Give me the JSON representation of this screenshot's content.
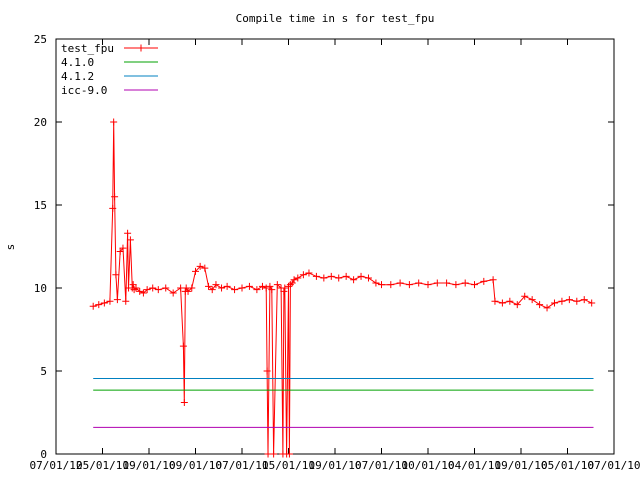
{
  "chart_data": {
    "type": "line",
    "title": "Compile time in s for test_fpu",
    "ylabel": "s",
    "xlabel": "",
    "ylim": [
      0,
      25
    ],
    "yticks": [
      0,
      5,
      10,
      15,
      20,
      25
    ],
    "grid": false,
    "legend_position": "top-left",
    "xlim": [
      0,
      30
    ],
    "xticks": [
      {
        "x": 0,
        "label": "07/01/12"
      },
      {
        "x": 2.5,
        "label": "05/01/11"
      },
      {
        "x": 5,
        "label": "09/01/10"
      },
      {
        "x": 7.5,
        "label": "09/01/10"
      },
      {
        "x": 10,
        "label": "07/01/11"
      },
      {
        "x": 12.5,
        "label": "05/01/11"
      },
      {
        "x": 15,
        "label": "09/01/10"
      },
      {
        "x": 17.5,
        "label": "07/01/10"
      },
      {
        "x": 20,
        "label": "10/01/10"
      },
      {
        "x": 22.5,
        "label": "04/01/11"
      },
      {
        "x": 25,
        "label": "09/01/10"
      },
      {
        "x": 27.5,
        "label": "05/01/10"
      },
      {
        "x": 30,
        "label": "07/01/10"
      }
    ],
    "series": [
      {
        "name": "test_fpu",
        "color": "#ff0000",
        "marker": "plus",
        "x": [
          2.0,
          2.3,
          2.6,
          2.9,
          3.05,
          3.1,
          3.15,
          3.22,
          3.3,
          3.45,
          3.6,
          3.75,
          3.85,
          3.9,
          4.0,
          4.1,
          4.15,
          4.2,
          4.3,
          4.5,
          4.7,
          4.9,
          5.2,
          5.5,
          5.9,
          6.3,
          6.7,
          6.85,
          6.9,
          6.95,
          7.0,
          7.1,
          7.3,
          7.5,
          7.75,
          8.0,
          8.2,
          8.4,
          8.6,
          8.9,
          9.2,
          9.6,
          10.0,
          10.4,
          10.8,
          11.1,
          11.3,
          11.35,
          11.4,
          11.5,
          11.6,
          11.7,
          11.9,
          12.1,
          12.2,
          12.25,
          12.3,
          12.4,
          12.5,
          12.55,
          12.6,
          12.7,
          12.8,
          13.0,
          13.3,
          13.6,
          14.0,
          14.4,
          14.8,
          15.2,
          15.6,
          16.0,
          16.4,
          16.8,
          17.2,
          17.5,
          18.0,
          18.5,
          19.0,
          19.5,
          20.0,
          20.5,
          21.0,
          21.5,
          22.0,
          22.5,
          23.0,
          23.5,
          23.6,
          24.0,
          24.4,
          24.8,
          25.2,
          25.6,
          26.0,
          26.4,
          26.8,
          27.2,
          27.6,
          28.0,
          28.4,
          28.8
        ],
        "y": [
          8.9,
          9.0,
          9.1,
          9.2,
          14.8,
          20.0,
          15.5,
          10.8,
          9.3,
          12.2,
          12.4,
          9.2,
          13.3,
          10.0,
          12.9,
          10.0,
          10.2,
          9.9,
          10.0,
          9.8,
          9.7,
          9.9,
          10.0,
          9.9,
          10.0,
          9.7,
          10.0,
          6.5,
          3.1,
          9.8,
          10.0,
          9.8,
          10.0,
          11.0,
          11.3,
          11.2,
          10.1,
          9.9,
          10.2,
          10.0,
          10.1,
          9.9,
          10.0,
          10.1,
          9.9,
          10.1,
          10.0,
          5.0,
          0.0,
          10.1,
          9.9,
          0.0,
          10.2,
          10.0,
          0.0,
          9.8,
          10.0,
          0.0,
          10.1,
          0.0,
          10.2,
          10.3,
          10.5,
          10.6,
          10.8,
          10.9,
          10.7,
          10.6,
          10.7,
          10.6,
          10.7,
          10.5,
          10.7,
          10.6,
          10.3,
          10.2,
          10.2,
          10.3,
          10.2,
          10.3,
          10.2,
          10.3,
          10.3,
          10.2,
          10.3,
          10.2,
          10.4,
          10.5,
          9.2,
          9.1,
          9.2,
          9.0,
          9.5,
          9.3,
          9.0,
          8.8,
          9.1,
          9.2,
          9.3,
          9.2,
          9.3,
          9.1
        ]
      },
      {
        "name": "4.1.0",
        "color": "#00a000",
        "x": [
          2.0,
          28.9
        ],
        "y": [
          3.85,
          3.85
        ]
      },
      {
        "name": "4.1.2",
        "color": "#0080c0",
        "x": [
          2.0,
          28.9
        ],
        "y": [
          4.55,
          4.55
        ]
      },
      {
        "name": "icc-9.0",
        "color": "#b000b0",
        "x": [
          2.0,
          28.9
        ],
        "y": [
          1.6,
          1.6
        ]
      }
    ]
  }
}
